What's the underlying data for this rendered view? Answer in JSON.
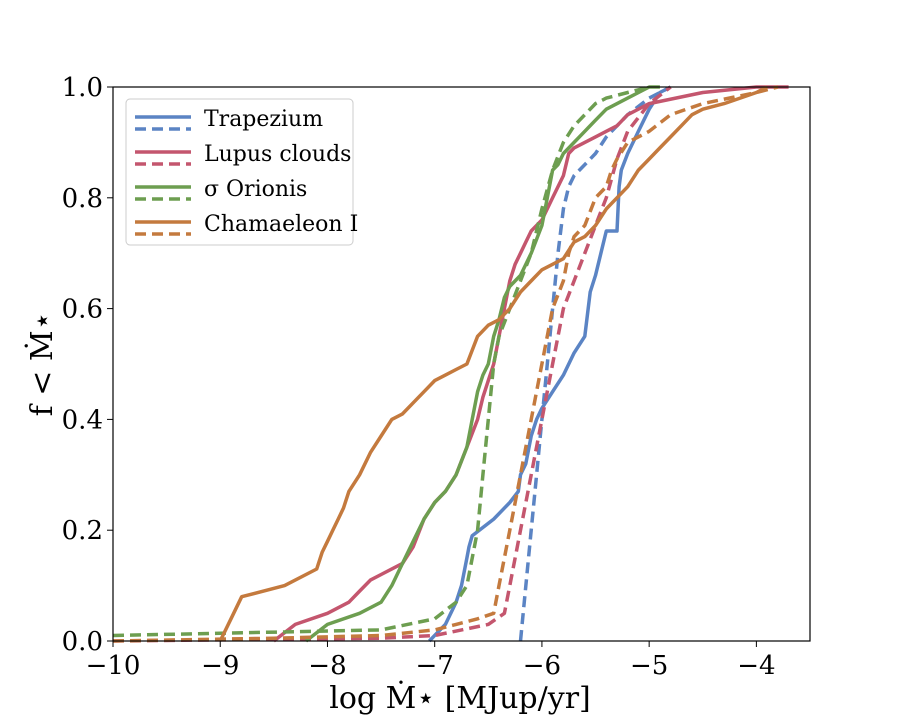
{
  "chart_data": {
    "type": "line",
    "title": "",
    "xlabel": "log Ṁ⋆ [MJup/yr]",
    "ylabel": "f < Ṁ⋆",
    "xlim": [
      -10,
      -3.5
    ],
    "ylim": [
      0,
      1
    ],
    "xticks": [
      -10,
      -9,
      -8,
      -7,
      -6,
      -5,
      -4
    ],
    "xtick_labels": [
      "−10",
      "−9",
      "−8",
      "−7",
      "−6",
      "−5",
      "−4"
    ],
    "yticks": [
      0,
      0.2,
      0.4,
      0.6,
      0.8,
      1.0
    ],
    "ytick_labels": [
      "0.0",
      "0.2",
      "0.4",
      "0.6",
      "0.8",
      "1.0"
    ],
    "grid": false,
    "legend_position": "top-left",
    "series": [
      {
        "name": "Trapezium",
        "style": "solid",
        "color": "#5b84c4",
        "x": [
          -7.05,
          -6.9,
          -6.8,
          -6.75,
          -6.7,
          -6.68,
          -6.65,
          -6.45,
          -6.3,
          -6.22,
          -6.2,
          -6.15,
          -6.1,
          -6.05,
          -6.0,
          -5.9,
          -5.8,
          -5.7,
          -5.6,
          -5.55,
          -5.5,
          -5.45,
          -5.4,
          -5.3,
          -5.28,
          -5.26,
          -5.2,
          -5.1,
          -5.0,
          -4.9,
          -4.8
        ],
        "y": [
          0.0,
          0.03,
          0.07,
          0.1,
          0.15,
          0.17,
          0.19,
          0.22,
          0.25,
          0.27,
          0.3,
          0.32,
          0.37,
          0.4,
          0.42,
          0.45,
          0.48,
          0.52,
          0.55,
          0.63,
          0.66,
          0.7,
          0.74,
          0.74,
          0.82,
          0.85,
          0.88,
          0.92,
          0.96,
          0.99,
          1.0
        ]
      },
      {
        "name": "Trapezium (dashed)",
        "style": "dashed",
        "color": "#5b84c4",
        "x": [
          -6.2,
          -6.1,
          -6.05,
          -6.0,
          -5.95,
          -5.9,
          -5.85,
          -5.8,
          -5.75,
          -5.7,
          -5.6,
          -5.5,
          -5.4,
          -5.3,
          -5.2,
          -5.0,
          -4.8
        ],
        "y": [
          0.0,
          0.2,
          0.3,
          0.4,
          0.5,
          0.6,
          0.7,
          0.78,
          0.82,
          0.84,
          0.86,
          0.88,
          0.91,
          0.93,
          0.95,
          0.98,
          1.0
        ]
      },
      {
        "name": "Lupus clouds",
        "style": "solid",
        "color": "#c4566e",
        "x": [
          -8.5,
          -8.3,
          -8.0,
          -7.8,
          -7.7,
          -7.6,
          -7.3,
          -7.2,
          -7.1,
          -7.0,
          -6.9,
          -6.8,
          -6.7,
          -6.6,
          -6.55,
          -6.5,
          -6.45,
          -6.4,
          -6.35,
          -6.3,
          -6.25,
          -6.2,
          -6.15,
          -6.1,
          -6.0,
          -5.9,
          -5.8,
          -5.75,
          -5.7,
          -5.6,
          -5.5,
          -5.4,
          -5.3,
          -5.2,
          -5.0,
          -4.5,
          -4.0,
          -3.7
        ],
        "y": [
          0.0,
          0.03,
          0.05,
          0.07,
          0.09,
          0.11,
          0.14,
          0.17,
          0.22,
          0.25,
          0.27,
          0.3,
          0.35,
          0.4,
          0.44,
          0.47,
          0.5,
          0.55,
          0.6,
          0.65,
          0.68,
          0.7,
          0.72,
          0.74,
          0.76,
          0.8,
          0.84,
          0.88,
          0.89,
          0.9,
          0.91,
          0.92,
          0.93,
          0.95,
          0.97,
          0.99,
          1.0,
          1.0
        ]
      },
      {
        "name": "Lupus clouds (dashed)",
        "style": "dashed",
        "color": "#c4566e",
        "x": [
          -10.0,
          -7.5,
          -7.0,
          -6.5,
          -6.35,
          -6.3,
          -6.2,
          -6.1,
          -6.0,
          -5.9,
          -5.8,
          -5.7,
          -5.6,
          -5.5,
          -5.4,
          -5.3,
          -5.2,
          -5.0,
          -4.8
        ],
        "y": [
          0.0,
          0.005,
          0.01,
          0.03,
          0.05,
          0.1,
          0.2,
          0.3,
          0.4,
          0.5,
          0.6,
          0.65,
          0.7,
          0.75,
          0.8,
          0.87,
          0.92,
          0.97,
          1.0
        ]
      },
      {
        "name": "σ Orionis",
        "style": "solid",
        "color": "#6d9e50",
        "x": [
          -8.2,
          -8.0,
          -7.7,
          -7.5,
          -7.4,
          -7.3,
          -7.2,
          -7.1,
          -7.0,
          -6.9,
          -6.8,
          -6.7,
          -6.65,
          -6.6,
          -6.55,
          -6.5,
          -6.45,
          -6.4,
          -6.35,
          -6.3,
          -6.2,
          -6.1,
          -6.0,
          -5.95,
          -5.9,
          -5.85,
          -5.8,
          -5.7,
          -5.6,
          -5.5,
          -5.4,
          -5.2,
          -5.0,
          -4.9
        ],
        "y": [
          0.0,
          0.03,
          0.05,
          0.07,
          0.1,
          0.14,
          0.18,
          0.22,
          0.25,
          0.27,
          0.3,
          0.35,
          0.4,
          0.45,
          0.48,
          0.5,
          0.55,
          0.58,
          0.62,
          0.64,
          0.66,
          0.7,
          0.75,
          0.8,
          0.85,
          0.86,
          0.88,
          0.9,
          0.92,
          0.94,
          0.96,
          0.98,
          1.0,
          1.0
        ]
      },
      {
        "name": "σ Orionis (dashed)",
        "style": "dashed",
        "color": "#6d9e50",
        "x": [
          -10.0,
          -7.5,
          -7.0,
          -6.8,
          -6.7,
          -6.6,
          -6.55,
          -6.5,
          -6.45,
          -6.4,
          -6.3,
          -6.2,
          -6.1,
          -6.0,
          -5.9,
          -5.8,
          -5.7,
          -5.6,
          -5.5,
          -5.4,
          -5.2,
          -5.0
        ],
        "y": [
          0.01,
          0.02,
          0.04,
          0.07,
          0.1,
          0.2,
          0.3,
          0.4,
          0.5,
          0.55,
          0.6,
          0.65,
          0.7,
          0.78,
          0.85,
          0.9,
          0.93,
          0.95,
          0.97,
          0.98,
          0.99,
          1.0
        ]
      },
      {
        "name": "Chamaeleon I",
        "style": "solid",
        "color": "#c47a3e",
        "x": [
          -9.0,
          -8.9,
          -8.8,
          -8.4,
          -8.1,
          -8.05,
          -8.0,
          -7.95,
          -7.9,
          -7.85,
          -7.8,
          -7.7,
          -7.6,
          -7.5,
          -7.4,
          -7.3,
          -7.2,
          -7.1,
          -7.0,
          -6.9,
          -6.8,
          -6.7,
          -6.6,
          -6.55,
          -6.5,
          -6.4,
          -6.3,
          -6.2,
          -6.1,
          -6.0,
          -5.9,
          -5.8,
          -5.7,
          -5.6,
          -5.5,
          -5.4,
          -5.3,
          -5.2,
          -5.1,
          -5.0,
          -4.9,
          -4.8,
          -4.7,
          -4.6,
          -4.5,
          -4.3,
          -4.0,
          -3.9
        ],
        "y": [
          0.0,
          0.04,
          0.08,
          0.1,
          0.13,
          0.16,
          0.18,
          0.2,
          0.22,
          0.24,
          0.27,
          0.3,
          0.34,
          0.37,
          0.4,
          0.41,
          0.43,
          0.45,
          0.47,
          0.48,
          0.49,
          0.5,
          0.55,
          0.56,
          0.57,
          0.58,
          0.6,
          0.63,
          0.65,
          0.67,
          0.68,
          0.69,
          0.72,
          0.73,
          0.75,
          0.78,
          0.8,
          0.82,
          0.85,
          0.87,
          0.89,
          0.91,
          0.93,
          0.95,
          0.96,
          0.97,
          0.99,
          1.0
        ]
      },
      {
        "name": "Chamaeleon I (dashed)",
        "style": "dashed",
        "color": "#c47a3e",
        "x": [
          -10.0,
          -8.5,
          -7.5,
          -7.0,
          -6.8,
          -6.6,
          -6.45,
          -6.4,
          -6.3,
          -6.2,
          -6.1,
          -6.0,
          -5.9,
          -5.8,
          -5.75,
          -5.7,
          -5.6,
          -5.5,
          -5.4,
          -5.35,
          -5.3,
          -5.2,
          -5.0,
          -4.8,
          -4.5,
          -4.0,
          -3.8
        ],
        "y": [
          0.0,
          0.005,
          0.01,
          0.02,
          0.03,
          0.04,
          0.05,
          0.1,
          0.2,
          0.3,
          0.4,
          0.5,
          0.6,
          0.65,
          0.7,
          0.73,
          0.75,
          0.8,
          0.82,
          0.85,
          0.87,
          0.9,
          0.92,
          0.95,
          0.97,
          0.99,
          1.0
        ]
      }
    ],
    "legend": [
      {
        "label": "Trapezium",
        "color": "#5b84c4"
      },
      {
        "label": "Lupus clouds",
        "color": "#c4566e"
      },
      {
        "label": "σ Orionis",
        "color": "#6d9e50"
      },
      {
        "label": "Chamaeleon I",
        "color": "#c47a3e"
      }
    ]
  }
}
